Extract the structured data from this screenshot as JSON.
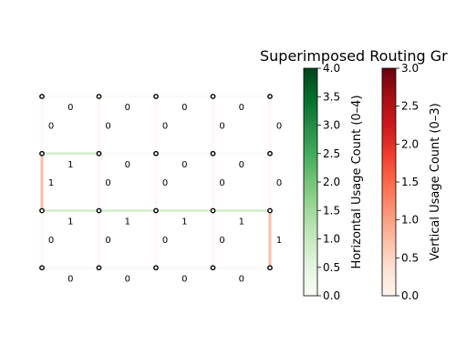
{
  "chart_data": {
    "type": "heatmap",
    "title": "Superimposed Routing Gr",
    "grid": {
      "cols": 5,
      "rows": 4,
      "h_edges": [
        [
          0,
          0,
          0,
          0
        ],
        [
          1,
          0,
          0,
          0
        ],
        [
          1,
          1,
          1,
          1
        ],
        [
          0,
          0,
          0,
          0
        ]
      ],
      "v_edges": [
        [
          0,
          0,
          0,
          0,
          0
        ],
        [
          1,
          0,
          0,
          0,
          0
        ],
        [
          0,
          0,
          0,
          0,
          1
        ]
      ]
    },
    "colorbars": [
      {
        "name": "horizontal",
        "label": "Horizontal Usage Count (0–4)",
        "cmap": "Greens",
        "range": [
          0,
          4
        ],
        "ticks": [
          "0.0",
          "0.5",
          "1.0",
          "1.5",
          "2.0",
          "2.5",
          "3.0",
          "3.5",
          "4.0"
        ],
        "colors": [
          "#f7fcf5",
          "#e5f5e0",
          "#c7e9c0",
          "#a1d99b",
          "#74c476",
          "#41ab5d",
          "#238b45",
          "#006d2c",
          "#00441b"
        ]
      },
      {
        "name": "vertical",
        "label": "Vertical Usage Count (0–3)",
        "cmap": "Reds",
        "range": [
          0,
          3
        ],
        "ticks": [
          "0.0",
          "0.5",
          "1.0",
          "1.5",
          "2.0",
          "2.5",
          "3.0"
        ],
        "colors": [
          "#fff5f0",
          "#fee0d2",
          "#fcbba1",
          "#fc9272",
          "#fb6a4a",
          "#ef3b2c",
          "#cb181d",
          "#a50f15",
          "#67000d"
        ]
      }
    ]
  }
}
